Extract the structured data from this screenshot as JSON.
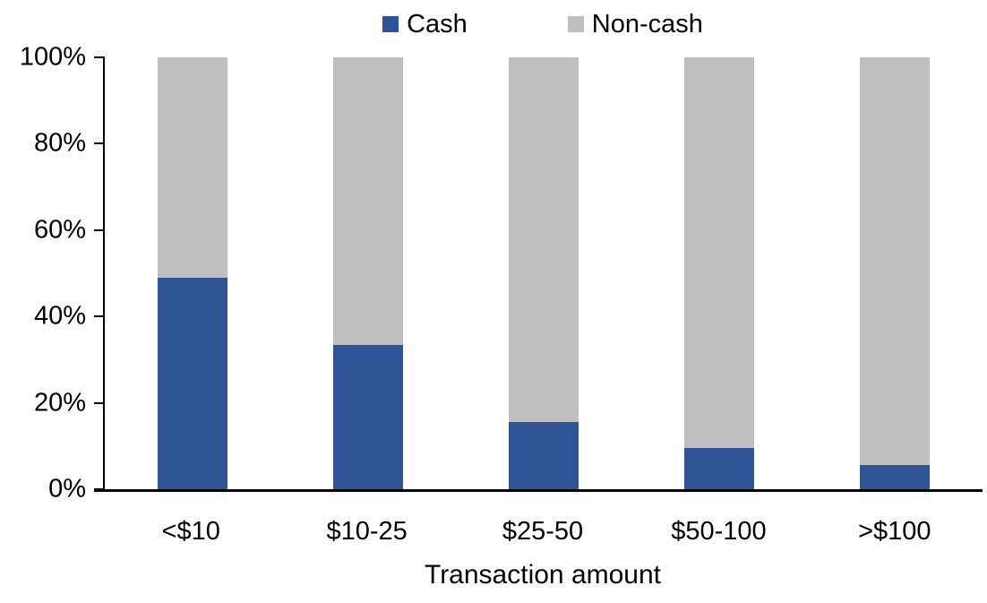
{
  "chart_data": {
    "type": "bar",
    "subtype": "stacked-100",
    "title": "",
    "xlabel": "Transaction amount",
    "ylabel": "",
    "categories": [
      "<$10",
      "$10-25",
      "$25-50",
      "$50-100",
      ">$100"
    ],
    "series": [
      {
        "name": "Cash",
        "color": "#2F5597",
        "values": [
          49,
          33.5,
          15.5,
          9.5,
          5.5
        ]
      },
      {
        "name": "Non-cash",
        "color": "#BFBFBF",
        "values": [
          51,
          66.5,
          84.5,
          90.5,
          94.5
        ]
      }
    ],
    "ylim": [
      0,
      100
    ],
    "yticks": [
      "0%",
      "20%",
      "40%",
      "60%",
      "80%",
      "100%"
    ],
    "ytick_values": [
      0,
      20,
      40,
      60,
      80,
      100
    ],
    "grid": "off",
    "legend_position": "top",
    "axis_color": "#000000"
  }
}
